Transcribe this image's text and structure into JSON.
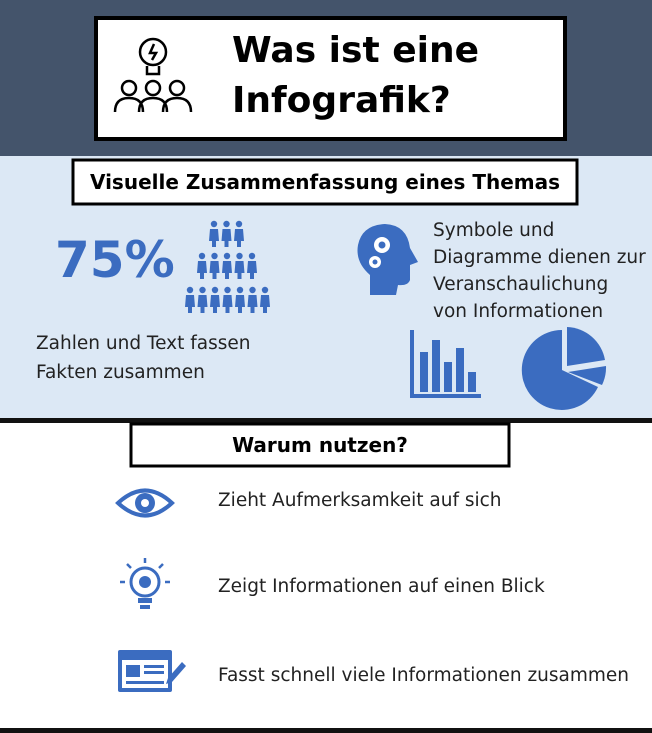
{
  "header": {
    "title_lines": [
      "Was ist eine",
      "Infografik?"
    ]
  },
  "section1": {
    "heading": "Visuelle Zusammenfassung eines Themas",
    "stat": "75%",
    "stat_caption_lines": [
      "Zahlen und Text fassen",
      "Fakten zusammen"
    ],
    "symbols_caption_lines": [
      "Symbole und",
      "Diagramme dienen zur",
      "Veranschaulichung",
      "von Informationen"
    ]
  },
  "section2": {
    "heading": "Warum nutzen?",
    "items": [
      "Zieht Aufmerksamkeit auf sich",
      "Zeigt Informationen auf einen Blick",
      "Fasst schnell viele Informationen zusammen"
    ]
  }
}
